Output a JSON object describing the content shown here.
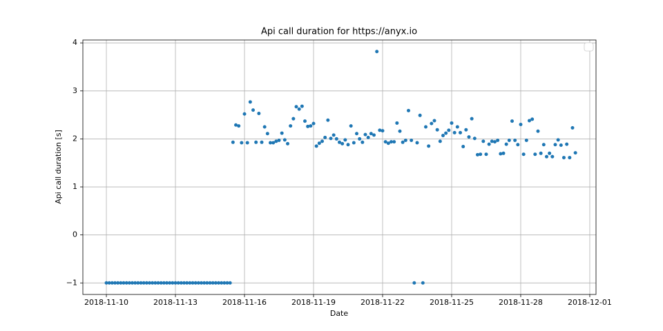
{
  "chart_data": {
    "type": "scatter",
    "title": "Api call duration for https://anyx.io",
    "x_label": "Date",
    "y_label": "Api call duration [s]",
    "color": "#1f77b4",
    "grid": true,
    "xlim": [
      "2018-11-08 23:30",
      "2018-12-01 06:30"
    ],
    "xticks": [
      "2018-11-10",
      "2018-11-13",
      "2018-11-16",
      "2018-11-19",
      "2018-11-22",
      "2018-11-25",
      "2018-11-28",
      "2018-12-01"
    ],
    "ylim": [
      -1.24,
      4.06
    ],
    "yticks": [
      {
        "value": -1,
        "label": "−1"
      },
      0,
      1,
      2,
      3,
      4
    ],
    "x": [
      "2018-11-10 00:00",
      "2018-11-10 03:00",
      "2018-11-10 06:00",
      "2018-11-10 09:00",
      "2018-11-10 12:00",
      "2018-11-10 15:00",
      "2018-11-10 18:00",
      "2018-11-10 21:00",
      "2018-11-11 00:00",
      "2018-11-11 03:00",
      "2018-11-11 06:00",
      "2018-11-11 09:00",
      "2018-11-11 12:00",
      "2018-11-11 15:00",
      "2018-11-11 18:00",
      "2018-11-11 21:00",
      "2018-11-12 00:00",
      "2018-11-12 03:00",
      "2018-11-12 06:00",
      "2018-11-12 09:00",
      "2018-11-12 12:00",
      "2018-11-12 15:00",
      "2018-11-12 18:00",
      "2018-11-12 21:00",
      "2018-11-13 00:00",
      "2018-11-13 03:00",
      "2018-11-13 06:00",
      "2018-11-13 09:00",
      "2018-11-13 12:00",
      "2018-11-13 15:00",
      "2018-11-13 18:00",
      "2018-11-13 21:00",
      "2018-11-14 00:00",
      "2018-11-14 03:00",
      "2018-11-14 06:00",
      "2018-11-14 09:00",
      "2018-11-14 12:00",
      "2018-11-14 15:00",
      "2018-11-14 18:00",
      "2018-11-14 21:00",
      "2018-11-15 00:00",
      "2018-11-15 03:00",
      "2018-11-15 06:00",
      "2018-11-15 09:00",
      "2018-11-15 12:00",
      "2018-11-15 15:00",
      "2018-11-15 18:00",
      "2018-11-15 21:00",
      "2018-11-16 00:00",
      "2018-11-16 03:00",
      "2018-11-16 06:00",
      "2018-11-16 09:00",
      "2018-11-16 12:00",
      "2018-11-16 15:00",
      "2018-11-16 18:00",
      "2018-11-16 21:00",
      "2018-11-17 00:00",
      "2018-11-17 03:00",
      "2018-11-17 06:00",
      "2018-11-17 09:00",
      "2018-11-17 12:00",
      "2018-11-17 15:00",
      "2018-11-17 18:00",
      "2018-11-17 21:00",
      "2018-11-18 00:00",
      "2018-11-18 03:00",
      "2018-11-18 06:00",
      "2018-11-18 09:00",
      "2018-11-18 12:00",
      "2018-11-18 15:00",
      "2018-11-18 18:00",
      "2018-11-18 21:00",
      "2018-11-19 00:00",
      "2018-11-19 03:00",
      "2018-11-19 06:00",
      "2018-11-19 09:00",
      "2018-11-19 12:00",
      "2018-11-19 15:00",
      "2018-11-19 18:00",
      "2018-11-19 21:00",
      "2018-11-20 00:00",
      "2018-11-20 03:00",
      "2018-11-20 06:00",
      "2018-11-20 09:00",
      "2018-11-20 12:00",
      "2018-11-20 15:00",
      "2018-11-20 18:00",
      "2018-11-20 21:00",
      "2018-11-21 00:00",
      "2018-11-21 03:00",
      "2018-11-21 06:00",
      "2018-11-21 09:00",
      "2018-11-21 12:00",
      "2018-11-21 15:00",
      "2018-11-21 18:00",
      "2018-11-21 21:00",
      "2018-11-22 00:00",
      "2018-11-22 03:00",
      "2018-11-22 06:00",
      "2018-11-22 09:00",
      "2018-11-22 12:00",
      "2018-11-22 15:00",
      "2018-11-22 18:00",
      "2018-11-22 21:00",
      "2018-11-23 00:00",
      "2018-11-23 03:00",
      "2018-11-23 06:00",
      "2018-11-23 09:00",
      "2018-11-23 12:00",
      "2018-11-23 15:00",
      "2018-11-23 18:00",
      "2018-11-23 21:00",
      "2018-11-24 00:00",
      "2018-11-24 03:00",
      "2018-11-24 06:00",
      "2018-11-24 09:00",
      "2018-11-24 12:00",
      "2018-11-24 15:00",
      "2018-11-24 18:00",
      "2018-11-24 21:00",
      "2018-11-25 00:00",
      "2018-11-25 03:00",
      "2018-11-25 06:00",
      "2018-11-25 09:00",
      "2018-11-25 12:00",
      "2018-11-25 15:00",
      "2018-11-25 18:00",
      "2018-11-25 21:00",
      "2018-11-26 00:00",
      "2018-11-26 03:00",
      "2018-11-26 06:00",
      "2018-11-26 09:00",
      "2018-11-26 12:00",
      "2018-11-26 15:00",
      "2018-11-26 18:00",
      "2018-11-26 21:00",
      "2018-11-27 00:00",
      "2018-11-27 03:00",
      "2018-11-27 06:00",
      "2018-11-27 09:00",
      "2018-11-27 12:00",
      "2018-11-27 15:00",
      "2018-11-27 18:00",
      "2018-11-27 21:00",
      "2018-11-28 00:00",
      "2018-11-28 03:00",
      "2018-11-28 06:00",
      "2018-11-28 09:00",
      "2018-11-28 12:00",
      "2018-11-28 15:00",
      "2018-11-28 18:00",
      "2018-11-28 21:00",
      "2018-11-29 00:00",
      "2018-11-29 03:00",
      "2018-11-29 06:00",
      "2018-11-29 09:00",
      "2018-11-29 12:00",
      "2018-11-29 15:00",
      "2018-11-29 18:00",
      "2018-11-29 21:00",
      "2018-11-30 00:00",
      "2018-11-30 03:00",
      "2018-11-30 06:00",
      "2018-11-30 09:00"
    ],
    "values": [
      -1,
      -1,
      -1,
      -1,
      -1,
      -1,
      -1,
      -1,
      -1,
      -1,
      -1,
      -1,
      -1,
      -1,
      -1,
      -1,
      -1,
      -1,
      -1,
      -1,
      -1,
      -1,
      -1,
      -1,
      -1,
      -1,
      -1,
      -1,
      -1,
      -1,
      -1,
      -1,
      -1,
      -1,
      -1,
      -1,
      -1,
      -1,
      -1,
      -1,
      -1,
      -1,
      -1,
      -1,
      1.93,
      2.29,
      2.27,
      1.92,
      2.52,
      1.92,
      2.77,
      2.6,
      1.93,
      2.53,
      1.93,
      2.25,
      2.11,
      1.92,
      1.92,
      1.95,
      1.97,
      2.12,
      1.98,
      1.9,
      2.27,
      2.42,
      2.67,
      2.62,
      2.68,
      2.37,
      2.26,
      2.27,
      2.32,
      1.85,
      1.91,
      1.95,
      2.03,
      2.39,
      2.01,
      2.08,
      2.0,
      1.93,
      1.9,
      1.98,
      1.88,
      2.27,
      1.92,
      2.11,
      2.0,
      1.93,
      2.09,
      2.03,
      2.11,
      2.08,
      3.82,
      2.18,
      2.17,
      1.94,
      1.91,
      1.94,
      1.94,
      2.33,
      2.16,
      1.93,
      1.97,
      2.59,
      1.97,
      -1,
      1.92,
      2.49,
      -1,
      2.25,
      1.85,
      2.32,
      2.38,
      2.19,
      1.95,
      2.07,
      2.12,
      2.18,
      2.33,
      2.13,
      2.25,
      2.13,
      1.84,
      2.19,
      2.04,
      2.42,
      2.01,
      1.67,
      1.68,
      1.95,
      1.68,
      1.89,
      1.95,
      1.94,
      1.97,
      1.69,
      1.7,
      1.89,
      1.97,
      2.37,
      1.97,
      1.88,
      2.3,
      1.68,
      1.97,
      2.38,
      2.41,
      1.68,
      2.16,
      1.7,
      1.88,
      1.63,
      1.7,
      1.63,
      1.88,
      1.98,
      1.87,
      1.61,
      1.89,
      1.61,
      2.23,
      1.71
    ]
  }
}
